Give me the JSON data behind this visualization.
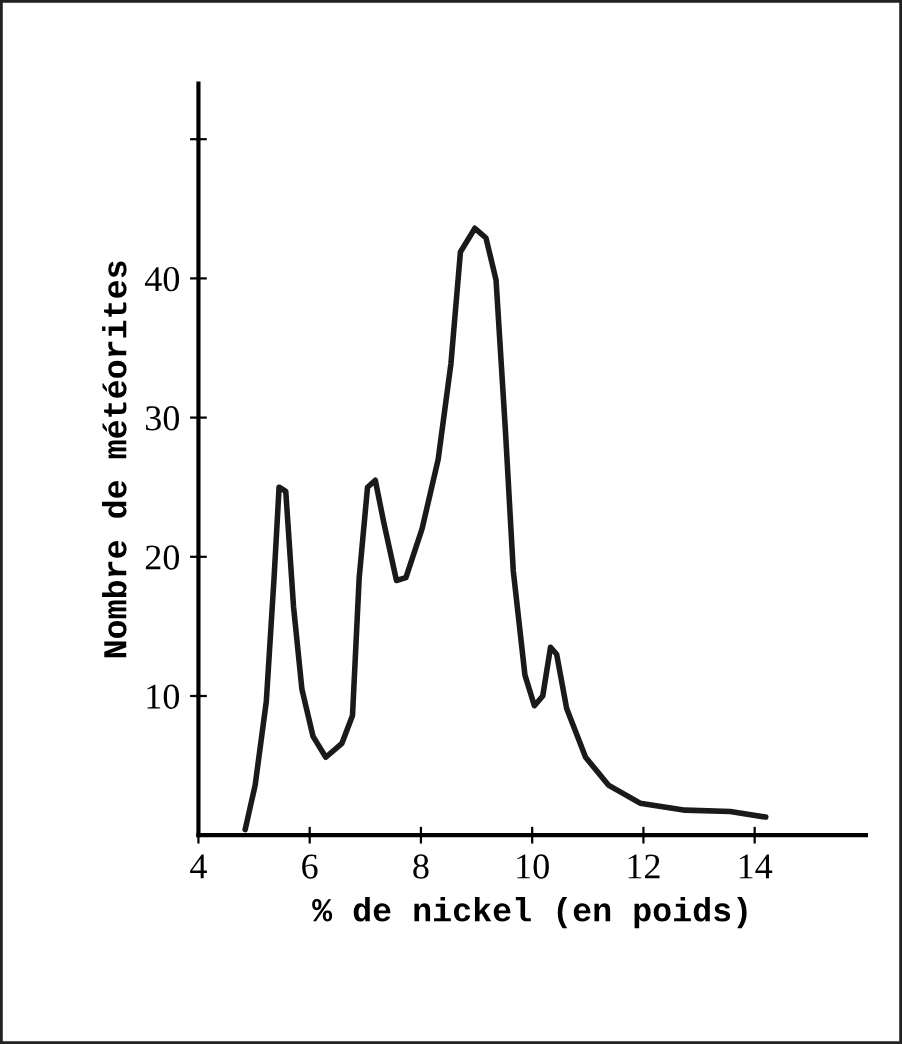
{
  "chart_data": {
    "type": "line",
    "xlabel": "% de nickel (en poids)",
    "ylabel": "Nombre de météorites",
    "x": [
      4.84,
      5.02,
      5.22,
      5.36,
      5.45,
      5.57,
      5.71,
      5.86,
      6.06,
      6.29,
      6.58,
      6.77,
      6.89,
      7.04,
      7.18,
      7.33,
      7.56,
      7.73,
      8.02,
      8.31,
      8.54,
      8.71,
      8.97,
      9.17,
      9.35,
      9.52,
      9.66,
      9.87,
      10.04,
      10.19,
      10.33,
      10.44,
      10.62,
      10.96,
      11.37,
      11.94,
      12.75,
      13.56,
      14.2
    ],
    "values": [
      0.4,
      3.6,
      9.6,
      18.5,
      25.0,
      24.7,
      16.4,
      10.5,
      7.1,
      5.6,
      6.6,
      8.6,
      18.5,
      25.0,
      25.5,
      22.5,
      18.3,
      18.5,
      22.0,
      27.0,
      33.9,
      41.9,
      43.6,
      42.9,
      39.9,
      29.0,
      19.0,
      11.5,
      9.3,
      10.0,
      13.5,
      13.0,
      9.1,
      5.6,
      3.6,
      2.3,
      1.8,
      1.7,
      1.3
    ],
    "color": "#1a1a1a",
    "marker": "none",
    "line_style": "solid",
    "grid": false,
    "legend": false,
    "xlim": [
      4,
      16
    ],
    "ylim": [
      0,
      54
    ],
    "xticks": [
      4,
      6,
      8,
      10,
      12,
      14
    ],
    "yticks": [
      10,
      20,
      30,
      40,
      {
        "value": 50,
        "label": null
      }
    ]
  }
}
